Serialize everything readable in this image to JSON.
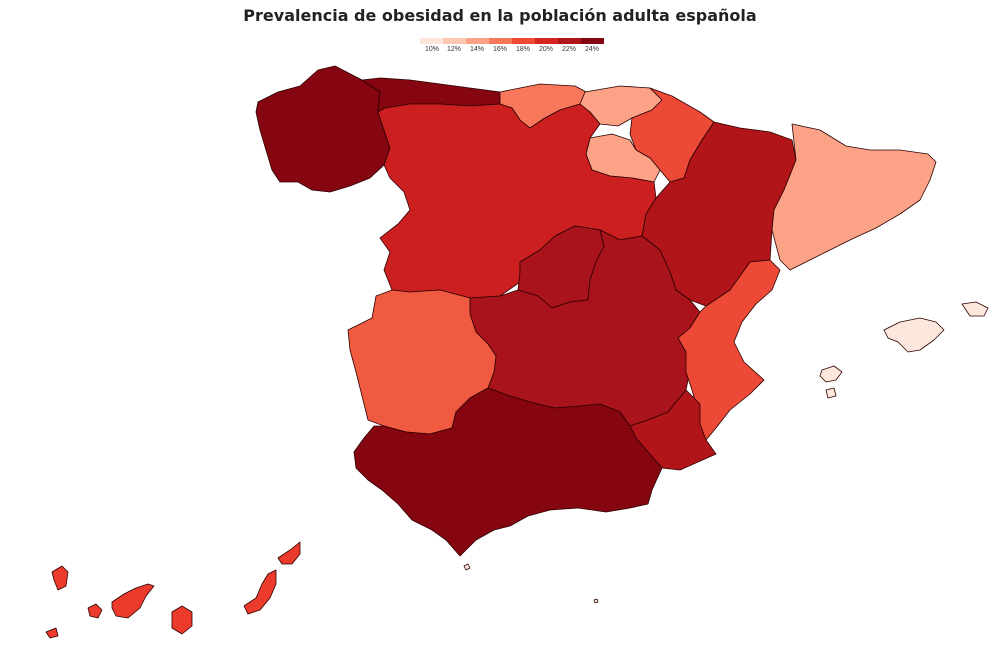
{
  "title": "Prevalencia de obesidad en la población adulta española",
  "legend": {
    "ticks": [
      "10%",
      "12%",
      "14%",
      "16%",
      "18%",
      "20%",
      "22%",
      "24%"
    ],
    "colors": [
      "#fde6dc",
      "#fcc7b0",
      "#fca286",
      "#f7785a",
      "#ec4a37",
      "#d42523",
      "#b11419",
      "#850610"
    ]
  },
  "regions": [
    {
      "name": "Galicia",
      "color": "#850610"
    },
    {
      "name": "Asturias",
      "color": "#850610"
    },
    {
      "name": "Cantabria",
      "color": "#f7785a"
    },
    {
      "name": "País Vasco",
      "color": "#fca286"
    },
    {
      "name": "Navarra",
      "color": "#ec4a37"
    },
    {
      "name": "La Rioja",
      "color": "#fca286"
    },
    {
      "name": "Aragón",
      "color": "#b11419"
    },
    {
      "name": "Cataluña",
      "color": "#fca286"
    },
    {
      "name": "Castilla y León",
      "color": "#cc2020"
    },
    {
      "name": "Madrid",
      "color": "#a9131b"
    },
    {
      "name": "Castilla-La Mancha",
      "color": "#a9131b"
    },
    {
      "name": "Extremadura",
      "color": "#f05a40"
    },
    {
      "name": "Comunidad Valenciana",
      "color": "#ec4a37"
    },
    {
      "name": "Murcia",
      "color": "#b11419"
    },
    {
      "name": "Andalucía",
      "color": "#850610"
    },
    {
      "name": "Islas Baleares",
      "color": "#fde6dc"
    },
    {
      "name": "Canarias",
      "color": "#ec3a2c"
    },
    {
      "name": "Ceuta",
      "color": "#fde6dc"
    },
    {
      "name": "Melilla",
      "color": "#fde6dc"
    }
  ]
}
